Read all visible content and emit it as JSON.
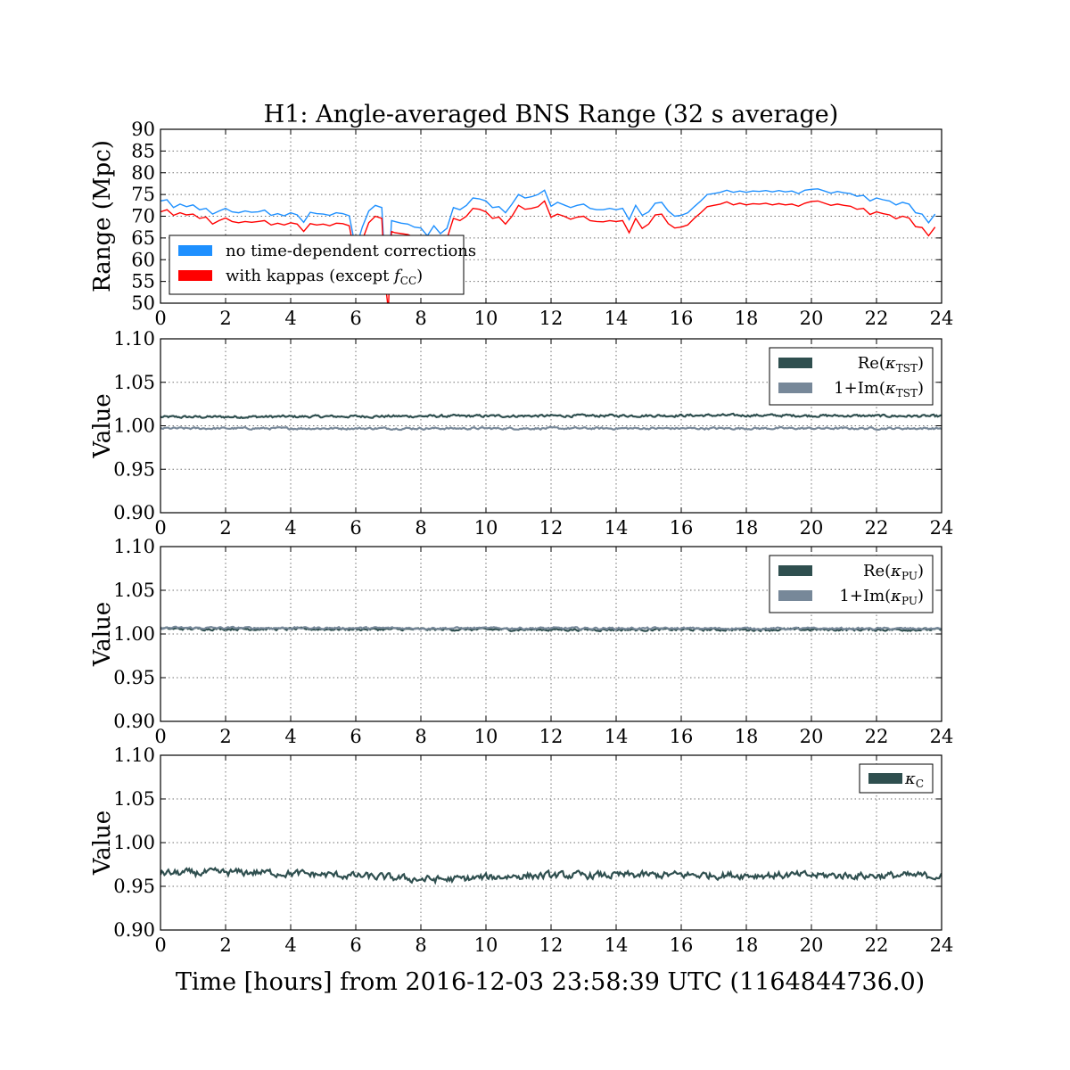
{
  "figure": {
    "xlabel": "Time [hours] from 2016-12-03 23:58:39 UTC (1164844736.0)"
  },
  "colors": {
    "blue": "#1e90ff",
    "red": "#ff0000",
    "dark": "#2f4f4f",
    "slate": "#778899"
  },
  "chart_data": [
    {
      "type": "line",
      "title": "H1: Angle-averaged BNS Range (32 s average)",
      "ylabel": "Range (Mpc)",
      "xlim": [
        0,
        24
      ],
      "ylim": [
        50,
        90
      ],
      "xticks": [
        "0",
        "2",
        "4",
        "6",
        "8",
        "10",
        "12",
        "14",
        "16",
        "18",
        "20",
        "22",
        "24"
      ],
      "yticks": [
        "50",
        "55",
        "60",
        "65",
        "70",
        "75",
        "80",
        "85",
        "90"
      ],
      "grid": true,
      "legend": "lower-left",
      "series": [
        {
          "name": "no time-dependent corrections",
          "color": "#1e90ff",
          "x": [
            0,
            0.2,
            0.4,
            0.6,
            0.8,
            1.0,
            1.2,
            1.4,
            1.6,
            1.8,
            2.0,
            2.2,
            2.4,
            2.6,
            2.8,
            3.0,
            3.2,
            3.4,
            3.6,
            3.8,
            4.0,
            4.2,
            4.4,
            4.6,
            4.8,
            5.0,
            5.2,
            5.4,
            5.6,
            5.8,
            6.0,
            6.2,
            6.4,
            6.6,
            6.8,
            6.9,
            7.0,
            7.1,
            7.2,
            7.4,
            7.6,
            7.8,
            8.0,
            8.2,
            8.4,
            8.6,
            8.8,
            9.0,
            9.2,
            9.4,
            9.6,
            9.8,
            10.0,
            10.2,
            10.4,
            10.6,
            10.8,
            11.0,
            11.2,
            11.4,
            11.6,
            11.8,
            12.0,
            12.2,
            12.4,
            12.6,
            12.8,
            13.0,
            13.2,
            13.4,
            13.6,
            13.8,
            14.0,
            14.2,
            14.4,
            14.6,
            14.8,
            15.0,
            15.2,
            15.4,
            15.6,
            15.8,
            16.0,
            16.2,
            16.4,
            16.6,
            16.8,
            17.0,
            17.2,
            17.4,
            17.6,
            17.8,
            18.0,
            18.2,
            18.4,
            18.6,
            18.8,
            19.0,
            19.2,
            19.4,
            19.6,
            19.8,
            20.0,
            20.2,
            20.4,
            20.6,
            20.8,
            21.0,
            21.2,
            21.4,
            21.6,
            21.8,
            22.0,
            22.2,
            22.4,
            22.6,
            22.8,
            23.0,
            23.2,
            23.4,
            23.6,
            23.8
          ],
          "y": [
            73.5,
            73.8,
            72.0,
            72.8,
            72.2,
            72.6,
            71.5,
            71.8,
            70.5,
            71.2,
            71.8,
            71.0,
            70.8,
            71.2,
            70.9,
            71.0,
            71.4,
            70.2,
            70.6,
            70.1,
            70.8,
            70.3,
            68.6,
            70.9,
            70.6,
            70.5,
            70.2,
            70.8,
            70.6,
            70.1,
            62.5,
            67.5,
            71.2,
            72.5,
            72.0,
            58.0,
            55.0,
            69.0,
            68.8,
            68.4,
            68.2,
            67.5,
            67.3,
            65.5,
            67.8,
            66.0,
            67.2,
            72.0,
            71.5,
            72.5,
            74.2,
            74.0,
            73.5,
            72.0,
            72.2,
            70.8,
            72.8,
            75.0,
            74.2,
            74.5,
            75.0,
            76.0,
            72.3,
            73.2,
            72.6,
            72.0,
            72.5,
            72.8,
            71.8,
            71.5,
            71.5,
            71.8,
            71.5,
            71.8,
            69.2,
            72.5,
            70.2,
            71.0,
            73.0,
            73.2,
            71.2,
            70.0,
            70.2,
            70.8,
            72.2,
            73.5,
            75.0,
            75.2,
            75.5,
            76.0,
            75.5,
            75.8,
            75.5,
            75.8,
            75.7,
            75.9,
            75.6,
            75.9,
            75.6,
            75.8,
            75.2,
            76.0,
            76.2,
            76.3,
            75.8,
            75.3,
            75.7,
            75.4,
            75.2,
            74.6,
            74.8,
            73.5,
            74.2,
            73.8,
            73.5,
            72.6,
            73.2,
            72.8,
            70.8,
            70.5,
            68.5,
            70.5
          ]
        },
        {
          "name": "with kappas (except $f_{\\rm CC}$)",
          "color": "#ff0000",
          "x": [
            0,
            0.2,
            0.4,
            0.6,
            0.8,
            1.0,
            1.2,
            1.4,
            1.6,
            1.8,
            2.0,
            2.2,
            2.4,
            2.6,
            2.8,
            3.0,
            3.2,
            3.4,
            3.6,
            3.8,
            4.0,
            4.2,
            4.4,
            4.6,
            4.8,
            5.0,
            5.2,
            5.4,
            5.6,
            5.8,
            6.0,
            6.2,
            6.4,
            6.6,
            6.8,
            6.9,
            7.0,
            7.1,
            7.2,
            7.4,
            7.6,
            7.8,
            8.0,
            8.2,
            8.4,
            8.6,
            8.8,
            9.0,
            9.2,
            9.4,
            9.6,
            9.8,
            10.0,
            10.2,
            10.4,
            10.6,
            10.8,
            11.0,
            11.2,
            11.4,
            11.6,
            11.8,
            12.0,
            12.2,
            12.4,
            12.6,
            12.8,
            13.0,
            13.2,
            13.4,
            13.6,
            13.8,
            14.0,
            14.2,
            14.4,
            14.6,
            14.8,
            15.0,
            15.2,
            15.4,
            15.6,
            15.8,
            16.0,
            16.2,
            16.4,
            16.6,
            16.8,
            17.0,
            17.2,
            17.4,
            17.6,
            17.8,
            18.0,
            18.2,
            18.4,
            18.6,
            18.8,
            19.0,
            19.2,
            19.4,
            19.6,
            19.8,
            20.0,
            20.2,
            20.4,
            20.6,
            20.8,
            21.0,
            21.2,
            21.4,
            21.6,
            21.8,
            22.0,
            22.2,
            22.4,
            22.6,
            22.8,
            23.0,
            23.2,
            23.4,
            23.6,
            23.8
          ],
          "y": [
            71.0,
            71.5,
            70.2,
            70.8,
            70.3,
            70.5,
            69.5,
            69.8,
            68.2,
            69.0,
            69.6,
            68.8,
            68.5,
            68.8,
            68.6,
            68.8,
            69.0,
            68.0,
            68.4,
            68.0,
            68.5,
            68.2,
            66.5,
            68.3,
            68.0,
            68.2,
            67.8,
            68.4,
            68.3,
            67.8,
            60.0,
            64.5,
            68.5,
            70.0,
            69.5,
            55.0,
            48.5,
            66.5,
            66.2,
            66.0,
            65.8,
            65.2,
            65.0,
            63.2,
            65.2,
            63.5,
            64.8,
            69.5,
            69.0,
            70.0,
            71.8,
            71.6,
            71.0,
            69.5,
            69.8,
            68.2,
            70.0,
            72.5,
            71.6,
            71.8,
            72.2,
            73.5,
            69.8,
            70.5,
            70.0,
            69.3,
            69.8,
            70.0,
            69.0,
            68.8,
            68.7,
            69.0,
            68.8,
            69.0,
            66.2,
            69.5,
            67.2,
            68.2,
            70.3,
            70.5,
            68.3,
            67.3,
            67.5,
            68.0,
            69.5,
            70.8,
            72.2,
            72.5,
            72.8,
            73.3,
            72.6,
            73.0,
            72.6,
            72.9,
            72.8,
            73.0,
            72.6,
            72.9,
            72.6,
            72.8,
            72.3,
            73.0,
            73.4,
            73.5,
            73.0,
            72.5,
            72.8,
            72.5,
            72.3,
            71.6,
            71.8,
            70.4,
            71.0,
            70.6,
            70.3,
            69.4,
            70.0,
            69.6,
            67.6,
            67.4,
            65.5,
            67.5
          ]
        }
      ]
    },
    {
      "type": "line",
      "ylabel": "Value",
      "xlim": [
        0,
        24
      ],
      "ylim": [
        0.9,
        1.1
      ],
      "xticks": [
        "0",
        "2",
        "4",
        "6",
        "8",
        "10",
        "12",
        "14",
        "16",
        "18",
        "20",
        "22",
        "24"
      ],
      "yticks": [
        "0.90",
        "0.95",
        "1.00",
        "1.05",
        "1.10"
      ],
      "grid": true,
      "legend": "top-right",
      "series": [
        {
          "name": "$\\mathrm{Re}(\\kappa_{\\mathrm{TST}})$",
          "color": "#2f4f4f",
          "base": 1.01,
          "noise": 0.0012,
          "drift": [
            [
              0,
              1.01
            ],
            [
              8,
              1.011
            ],
            [
              18,
              1.012
            ],
            [
              24,
              1.011
            ]
          ]
        },
        {
          "name": "$1+\\mathrm{Im}(\\kappa_{\\mathrm{TST}})$",
          "color": "#778899",
          "base": 0.997,
          "noise": 0.001,
          "drift": [
            [
              0,
              0.997
            ],
            [
              24,
              0.997
            ]
          ]
        }
      ]
    },
    {
      "type": "line",
      "ylabel": "Value",
      "xlim": [
        0,
        24
      ],
      "ylim": [
        0.9,
        1.1
      ],
      "xticks": [
        "0",
        "2",
        "4",
        "6",
        "8",
        "10",
        "12",
        "14",
        "16",
        "18",
        "20",
        "22",
        "24"
      ],
      "yticks": [
        "0.90",
        "0.95",
        "1.00",
        "1.05",
        "1.10"
      ],
      "grid": true,
      "legend": "top-right",
      "series": [
        {
          "name": "$\\mathrm{Re}(\\kappa_{\\mathrm{PU}})$",
          "color": "#2f4f4f",
          "base": 1.005,
          "noise": 0.0012,
          "drift": [
            [
              0,
              1.006
            ],
            [
              12,
              1.005
            ],
            [
              24,
              1.005
            ]
          ]
        },
        {
          "name": "$1+\\mathrm{Im}(\\kappa_{\\mathrm{PU}})$",
          "color": "#778899",
          "base": 1.007,
          "noise": 0.001,
          "drift": [
            [
              0,
              1.007
            ],
            [
              24,
              1.006
            ]
          ]
        }
      ]
    },
    {
      "type": "line",
      "ylabel": "Value",
      "xlim": [
        0,
        24
      ],
      "ylim": [
        0.9,
        1.1
      ],
      "xticks": [
        "0",
        "2",
        "4",
        "6",
        "8",
        "10",
        "12",
        "14",
        "16",
        "18",
        "20",
        "22",
        "24"
      ],
      "yticks": [
        "0.90",
        "0.95",
        "1.00",
        "1.05",
        "1.10"
      ],
      "grid": true,
      "legend": "top-right",
      "series": [
        {
          "name": "$\\kappa_{\\mathrm{C}}$",
          "color": "#2f4f4f",
          "base": 0.963,
          "noise": 0.0035,
          "drift": [
            [
              0,
              0.965
            ],
            [
              3,
              0.966
            ],
            [
              6,
              0.962
            ],
            [
              8,
              0.958
            ],
            [
              9,
              0.958
            ],
            [
              11,
              0.962
            ],
            [
              16,
              0.963
            ],
            [
              24,
              0.962
            ]
          ]
        }
      ]
    }
  ]
}
